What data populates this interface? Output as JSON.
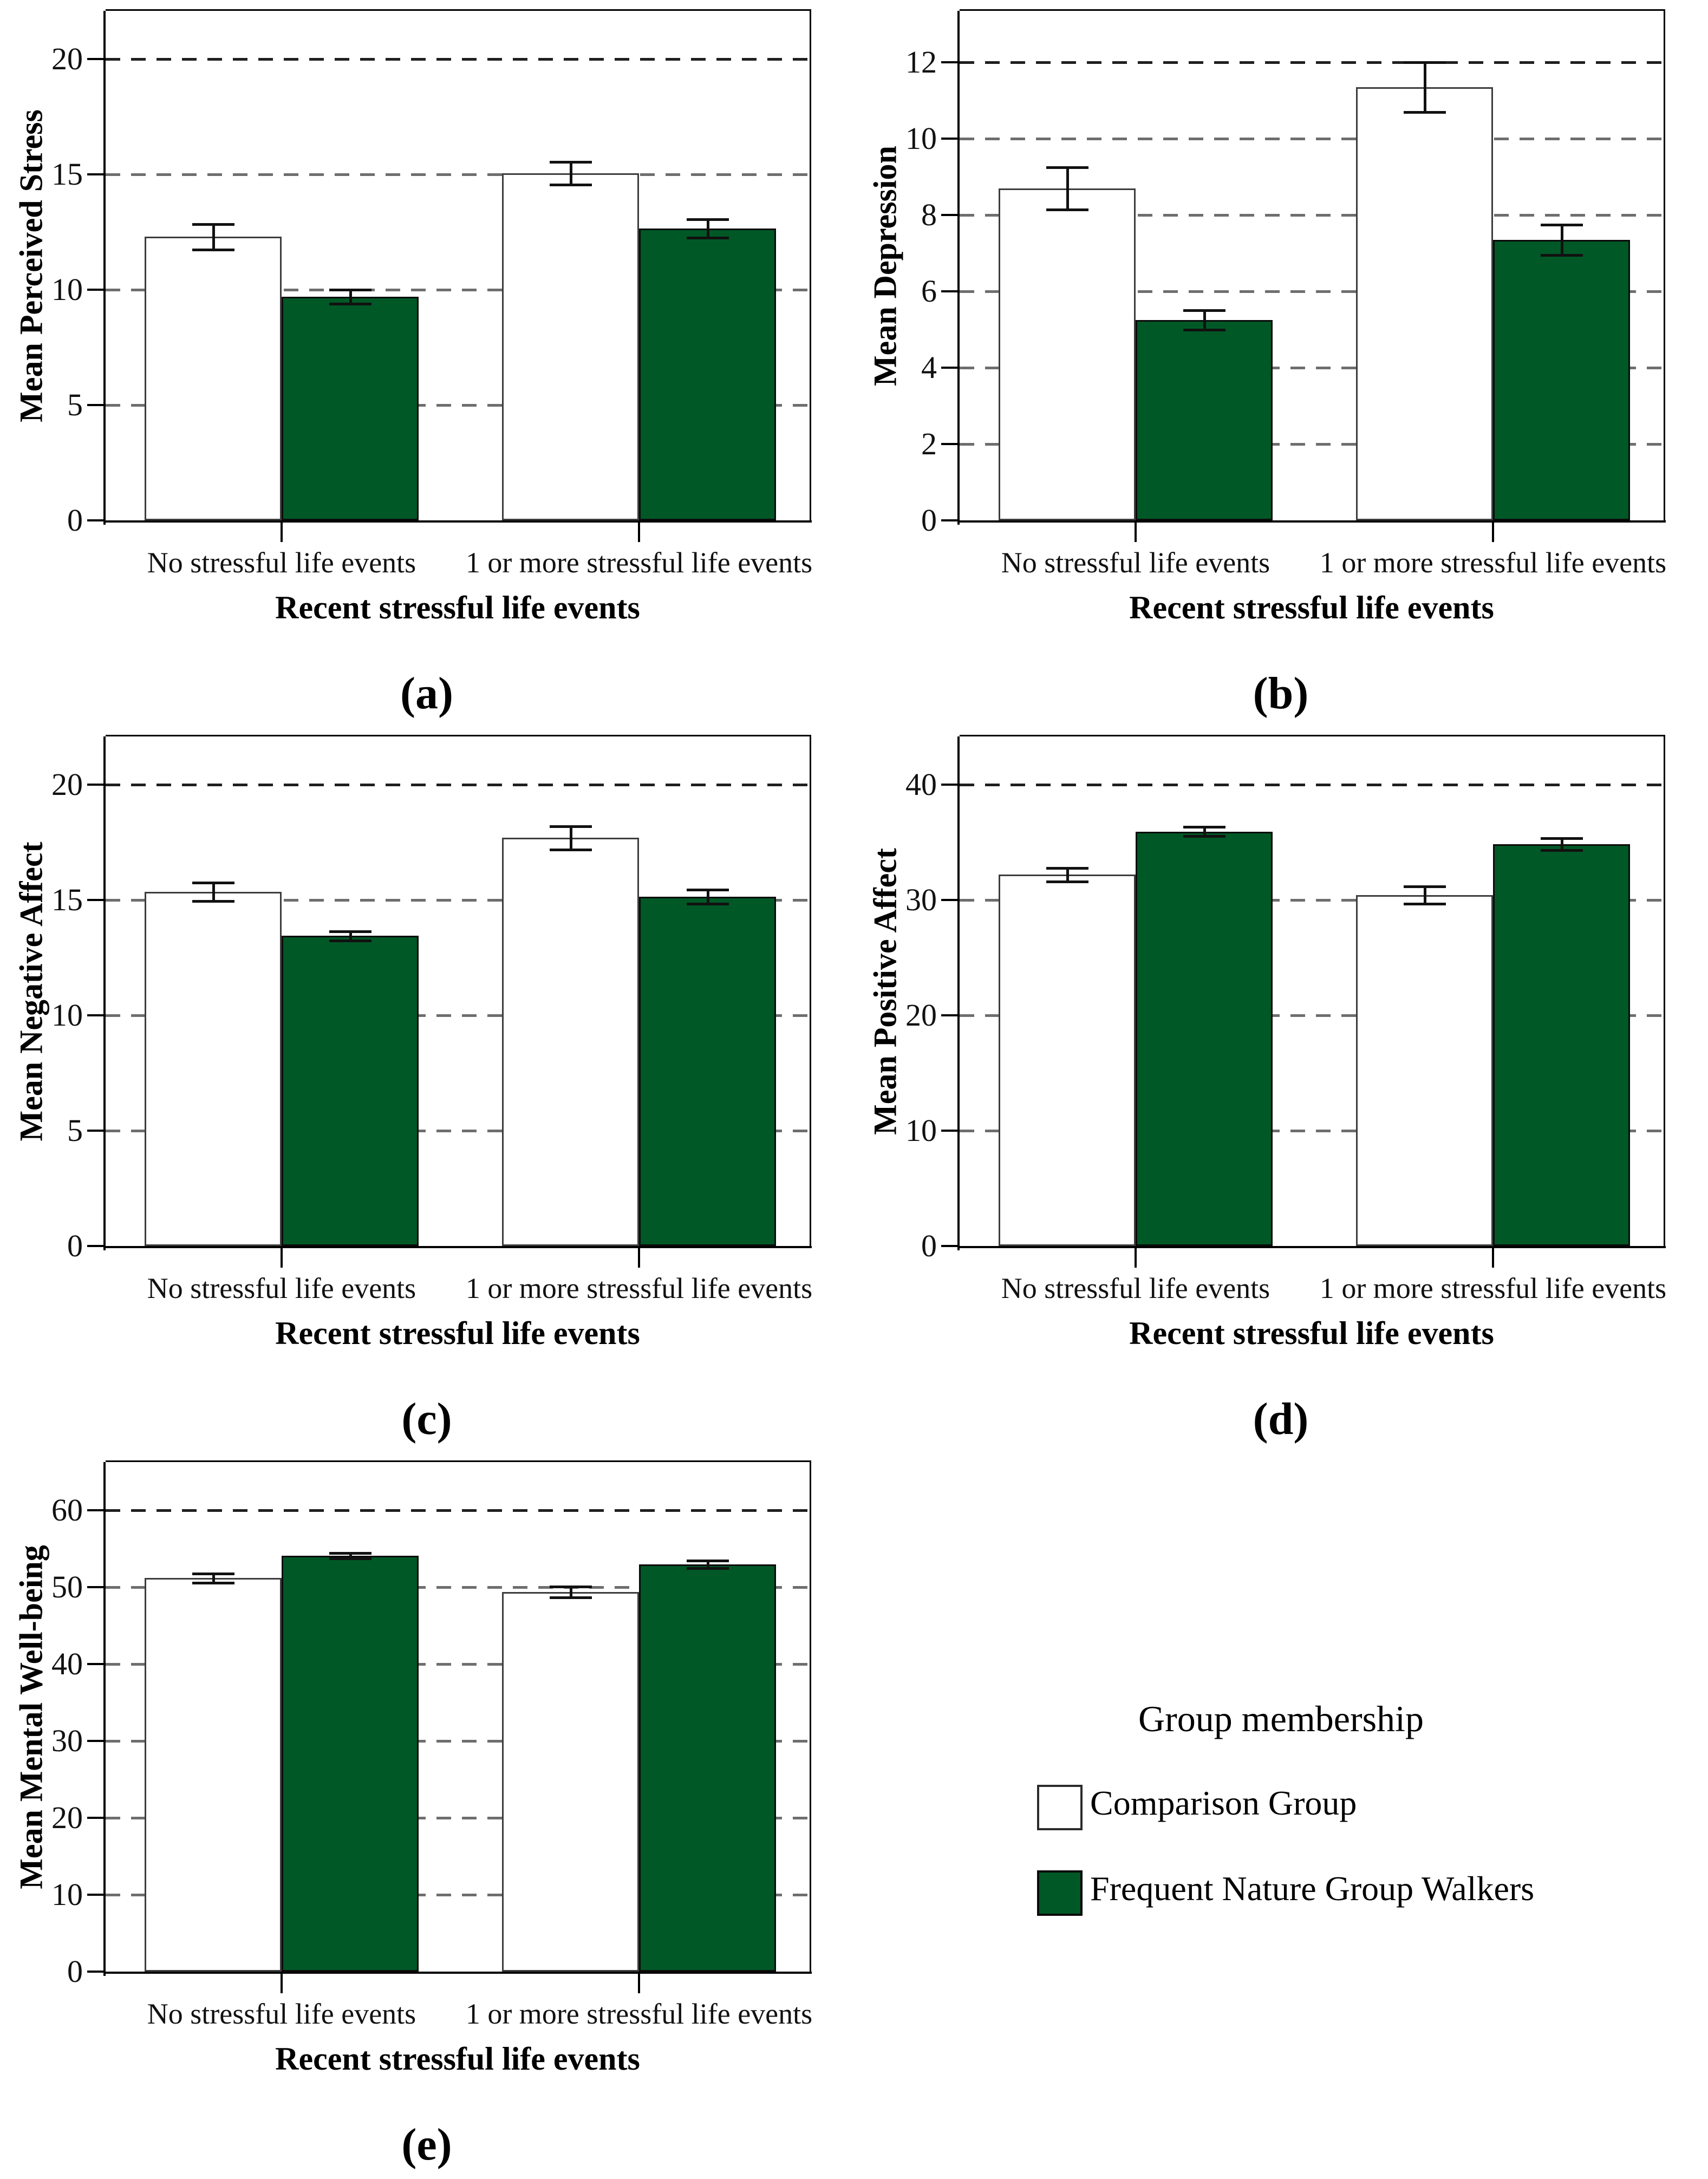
{
  "figure": {
    "background": "#ffffff",
    "bar_outline_comparison": "#3d3d3d",
    "bar_outline_walkers": "#0b0b0b",
    "grid_color_top": "#1f1f1f",
    "grid_color": "#6e6e6e",
    "error_bar_color": "#111111"
  },
  "legend": {
    "title": "Group membership",
    "position": "bottom-right-cell",
    "entries": [
      {
        "label": "Comparison Group",
        "color": "#ffffff"
      },
      {
        "label": "Frequent Nature Group Walkers",
        "color": "#005826"
      }
    ]
  },
  "chart_data": [
    {
      "panel": "a",
      "panel_label": "(a)",
      "type": "bar",
      "ylabel": "Mean Perceived Stress",
      "xlabel": "Recent stressful life events",
      "categories": [
        "No stressful life events",
        "1 or more stressful life events"
      ],
      "yticks": [
        0,
        5,
        10,
        15,
        20
      ],
      "ylim": [
        0,
        22.1
      ],
      "grid": "dashed-horizontal",
      "legend_position": "none",
      "series": [
        {
          "name": "Comparison Group",
          "values": [
            12.3,
            15.05
          ],
          "errors": [
            0.55,
            0.5
          ]
        },
        {
          "name": "Frequent Nature Group Walkers",
          "values": [
            9.7,
            12.65
          ],
          "errors": [
            0.3,
            0.4
          ]
        }
      ]
    },
    {
      "panel": "b",
      "panel_label": "(b)",
      "type": "bar",
      "ylabel": "Mean Depression",
      "xlabel": "Recent stressful life events",
      "categories": [
        "No stressful life events",
        "1 or more stressful life events"
      ],
      "yticks": [
        0,
        2,
        4,
        6,
        8,
        10,
        12
      ],
      "ylim": [
        0,
        13.35
      ],
      "grid": "dashed-horizontal",
      "legend_position": "none",
      "series": [
        {
          "name": "Comparison Group",
          "values": [
            8.7,
            11.35
          ],
          "errors": [
            0.55,
            0.65
          ]
        },
        {
          "name": "Frequent Nature Group Walkers",
          "values": [
            5.25,
            7.35
          ],
          "errors": [
            0.25,
            0.4
          ]
        }
      ]
    },
    {
      "panel": "c",
      "panel_label": "(c)",
      "type": "bar",
      "ylabel": "Mean Negative Affect",
      "xlabel": "Recent stressful life events",
      "categories": [
        "No stressful life events",
        "1 or more stressful life events"
      ],
      "yticks": [
        0,
        5,
        10,
        15,
        20
      ],
      "ylim": [
        0,
        22.1
      ],
      "grid": "dashed-horizontal",
      "legend_position": "none",
      "series": [
        {
          "name": "Comparison Group",
          "values": [
            15.35,
            17.7
          ],
          "errors": [
            0.4,
            0.5
          ]
        },
        {
          "name": "Frequent Nature Group Walkers",
          "values": [
            13.45,
            15.15
          ],
          "errors": [
            0.2,
            0.3
          ]
        }
      ]
    },
    {
      "panel": "d",
      "panel_label": "(d)",
      "type": "bar",
      "ylabel": "Mean Positive Affect",
      "xlabel": "Recent stressful life events",
      "categories": [
        "No stressful life events",
        "1 or more stressful life events"
      ],
      "yticks": [
        0,
        10,
        20,
        30,
        40
      ],
      "ylim": [
        0,
        44.2
      ],
      "grid": "dashed-horizontal",
      "legend_position": "none",
      "series": [
        {
          "name": "Comparison Group",
          "values": [
            32.2,
            30.45
          ],
          "errors": [
            0.6,
            0.75
          ]
        },
        {
          "name": "Frequent Nature Group Walkers",
          "values": [
            35.95,
            34.85
          ],
          "errors": [
            0.4,
            0.5
          ]
        }
      ]
    },
    {
      "panel": "e",
      "panel_label": "(e)",
      "type": "bar",
      "ylabel": "Mean Mental Well-being",
      "xlabel": "Recent stressful life events",
      "categories": [
        "No stressful life events",
        "1 or more stressful life events"
      ],
      "yticks": [
        0,
        10,
        20,
        30,
        40,
        50,
        60
      ],
      "ylim": [
        0,
        66.3
      ],
      "grid": "dashed-horizontal",
      "legend_position": "none",
      "series": [
        {
          "name": "Comparison Group",
          "values": [
            51.2,
            49.4
          ],
          "errors": [
            0.6,
            0.7
          ]
        },
        {
          "name": "Frequent Nature Group Walkers",
          "values": [
            54.1,
            53.0
          ],
          "errors": [
            0.35,
            0.5
          ]
        }
      ]
    }
  ]
}
